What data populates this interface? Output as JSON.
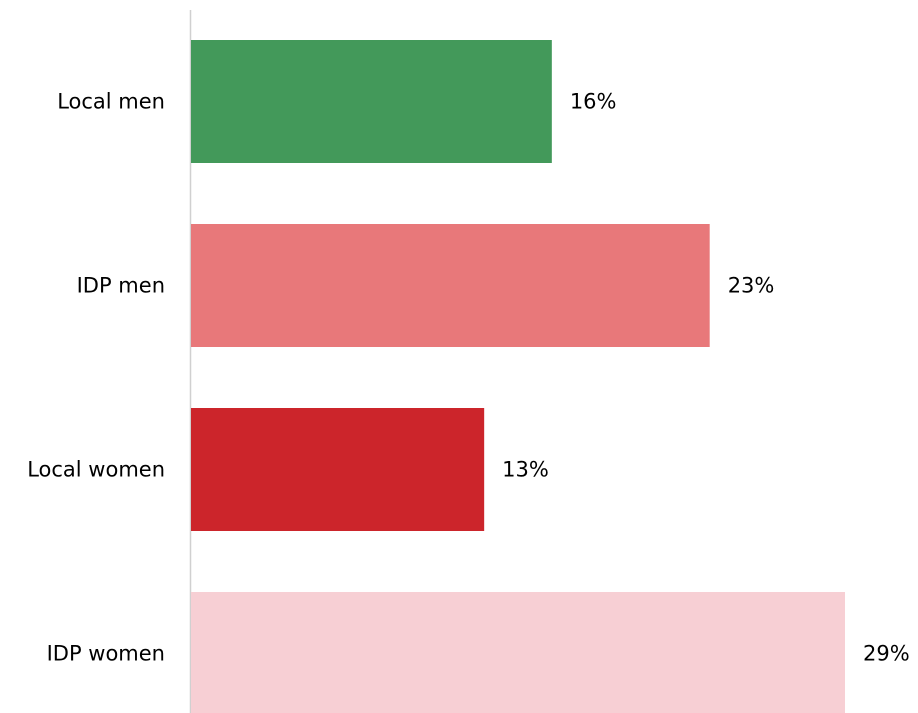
{
  "chart_data": {
    "type": "bar",
    "orientation": "horizontal",
    "title": "",
    "xlabel": "",
    "ylabel": "",
    "xlim": [
      0,
      29
    ],
    "grid": false,
    "legend": "none",
    "categories": [
      "Local men",
      "IDP men",
      "Local women",
      "IDP women"
    ],
    "values": [
      16,
      23,
      13,
      29
    ],
    "value_labels": [
      "16%",
      "23%",
      "13%",
      "29%"
    ],
    "colors": [
      "#43995a",
      "#e8787a",
      "#cc252b",
      "#f7cfd4"
    ]
  }
}
